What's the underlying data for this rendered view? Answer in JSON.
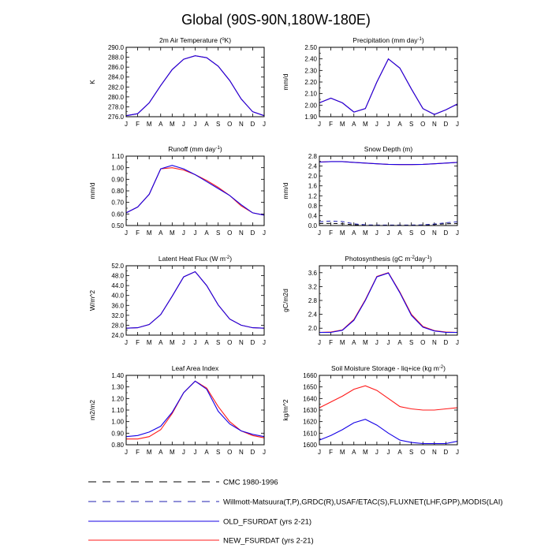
{
  "title": "Global (90S-90N,180W-180E)",
  "months": [
    "J",
    "F",
    "M",
    "A",
    "M",
    "J",
    "J",
    "A",
    "S",
    "O",
    "N",
    "D",
    "J"
  ],
  "colors": {
    "old": "#1400e6",
    "new": "#ff1a1a",
    "axis": "#000000",
    "obs": "#000000",
    "obs2": "#2020b0"
  },
  "chart_data": [
    {
      "type": "line",
      "title": "2m Air Temperature (°K)",
      "title_parts": [
        "2m Air Temperature (",
        "o",
        "K)"
      ],
      "ylabel": "K",
      "ylim": [
        276,
        290
      ],
      "yticks": [
        "276.0",
        "278.0",
        "280.0",
        "282.0",
        "284.0",
        "286.0",
        "288.0",
        "290.0"
      ],
      "series": [
        {
          "name": "NEW_FSURDAT (yrs 2-21)",
          "values": [
            276.2,
            276.6,
            278.8,
            282.3,
            285.5,
            287.6,
            288.3,
            287.9,
            286.2,
            283.3,
            279.6,
            277.0,
            276.2
          ]
        },
        {
          "name": "OLD_FSURDAT (yrs 2-21)",
          "values": [
            276.2,
            276.6,
            278.8,
            282.3,
            285.5,
            287.6,
            288.3,
            287.9,
            286.2,
            283.3,
            279.6,
            277.0,
            276.2
          ]
        }
      ]
    },
    {
      "type": "line",
      "title": "Precipitation (mm day-1)",
      "title_parts": [
        "Precipitation (mm day",
        "-1",
        ")"
      ],
      "ylabel": "mm/d",
      "ylim": [
        1.9,
        2.5
      ],
      "yticks": [
        "1.90",
        "2.00",
        "2.10",
        "2.20",
        "2.30",
        "2.40",
        "2.50"
      ],
      "series": [
        {
          "name": "NEW_FSURDAT (yrs 2-21)",
          "values": [
            2.02,
            2.06,
            2.02,
            1.94,
            1.97,
            2.2,
            2.4,
            2.32,
            2.14,
            1.97,
            1.92,
            1.96,
            2.01
          ]
        },
        {
          "name": "OLD_FSURDAT (yrs 2-21)",
          "values": [
            2.02,
            2.06,
            2.02,
            1.94,
            1.97,
            2.2,
            2.4,
            2.32,
            2.14,
            1.97,
            1.92,
            1.96,
            2.01
          ]
        }
      ]
    },
    {
      "type": "line",
      "title": "Runoff (mm day-1)",
      "title_parts": [
        "Runoff (mm day",
        "-1",
        ")"
      ],
      "ylabel": "mm/d",
      "ylim": [
        0.5,
        1.1
      ],
      "yticks": [
        "0.50",
        "0.60",
        "0.70",
        "0.80",
        "0.90",
        "1.00",
        "1.10"
      ],
      "series": [
        {
          "name": "NEW_FSURDAT (yrs 2-21)",
          "values": [
            0.61,
            0.66,
            0.77,
            0.99,
            1.0,
            0.98,
            0.94,
            0.89,
            0.83,
            0.76,
            0.67,
            0.61,
            0.59
          ]
        },
        {
          "name": "OLD_FSURDAT (yrs 2-21)",
          "values": [
            0.61,
            0.66,
            0.77,
            0.99,
            1.02,
            0.99,
            0.94,
            0.88,
            0.82,
            0.76,
            0.68,
            0.61,
            0.59
          ]
        }
      ]
    },
    {
      "type": "line",
      "title": "Snow Depth (m)",
      "title_parts": [
        "Snow Depth (m)",
        "",
        ""
      ],
      "ylabel": "mm/d",
      "ylim": [
        0,
        2.8
      ],
      "yticks": [
        "0.0",
        "0.4",
        "0.8",
        "1.2",
        "1.6",
        "2.0",
        "2.4",
        "2.8"
      ],
      "series": [
        {
          "name": "NEW_FSURDAT (yrs 2-21)",
          "values": [
            2.56,
            2.58,
            2.58,
            2.55,
            2.52,
            2.49,
            2.47,
            2.46,
            2.46,
            2.47,
            2.49,
            2.52,
            2.55
          ]
        },
        {
          "name": "OLD_FSURDAT (yrs 2-21)",
          "values": [
            2.56,
            2.58,
            2.58,
            2.55,
            2.52,
            2.49,
            2.47,
            2.46,
            2.46,
            2.47,
            2.49,
            2.52,
            2.55
          ]
        },
        {
          "name": "CMC 1980-1996",
          "values": [
            0.08,
            0.09,
            0.07,
            0.03,
            0.02,
            0.01,
            0.01,
            0.01,
            0.01,
            0.02,
            0.04,
            0.07,
            0.08
          ]
        },
        {
          "name": "Willmott-Matsuura",
          "values": [
            0.15,
            0.18,
            0.16,
            0.07,
            0.03,
            0.02,
            0.02,
            0.02,
            0.02,
            0.03,
            0.06,
            0.11,
            0.15
          ]
        }
      ]
    },
    {
      "type": "line",
      "title": "Latent Heat Flux (W m-2)",
      "title_parts": [
        "Latent Heat Flux (W m",
        "-2",
        ")"
      ],
      "ylabel": "W/m^2",
      "ylim": [
        24,
        52
      ],
      "yticks": [
        "24.0",
        "28.0",
        "32.0",
        "36.0",
        "40.0",
        "44.0",
        "48.0",
        "52.0"
      ],
      "series": [
        {
          "name": "NEW_FSURDAT (yrs 2-21)",
          "values": [
            26.8,
            27.0,
            28.3,
            32.3,
            39.7,
            47.5,
            49.6,
            44.0,
            36.2,
            30.5,
            28.0,
            27.0,
            26.8
          ]
        },
        {
          "name": "OLD_FSURDAT (yrs 2-21)",
          "values": [
            26.8,
            27.0,
            28.3,
            32.3,
            39.7,
            47.5,
            49.6,
            44.0,
            36.2,
            30.5,
            28.0,
            27.0,
            26.8
          ]
        }
      ]
    },
    {
      "type": "line",
      "title": "Photosynthesis (gC m-2day-1)",
      "title_parts": [
        "Photosynthesis (gC m",
        "-2",
        "day",
        "-1",
        ")"
      ],
      "ylabel": "gC/m2d",
      "ylim": [
        1.8,
        3.8
      ],
      "yticks": [
        "2.0",
        "2.4",
        "2.8",
        "3.2",
        "3.6"
      ],
      "ytick_values": [
        2.0,
        2.4,
        2.8,
        3.2,
        3.6
      ],
      "series": [
        {
          "name": "NEW_FSURDAT (yrs 2-21)",
          "values": [
            1.88,
            1.89,
            1.95,
            2.25,
            2.82,
            3.49,
            3.6,
            3.04,
            2.4,
            2.05,
            1.93,
            1.89,
            1.88
          ]
        },
        {
          "name": "OLD_FSURDAT (yrs 2-21)",
          "values": [
            1.88,
            1.88,
            1.94,
            2.23,
            2.8,
            3.48,
            3.59,
            3.02,
            2.37,
            2.03,
            1.92,
            1.88,
            1.88
          ]
        }
      ]
    },
    {
      "type": "line",
      "title": "Leaf Area Index",
      "title_parts": [
        "Leaf Area Index",
        "",
        ""
      ],
      "ylabel": "m2/m2",
      "ylim": [
        0.8,
        1.4
      ],
      "yticks": [
        "0.80",
        "0.90",
        "1.00",
        "1.10",
        "1.20",
        "1.30",
        "1.40"
      ],
      "series": [
        {
          "name": "NEW_FSURDAT (yrs 2-21)",
          "values": [
            0.85,
            0.85,
            0.87,
            0.93,
            1.07,
            1.25,
            1.35,
            1.29,
            1.13,
            1.0,
            0.92,
            0.88,
            0.86
          ]
        },
        {
          "name": "OLD_FSURDAT (yrs 2-21)",
          "values": [
            0.87,
            0.88,
            0.91,
            0.96,
            1.08,
            1.25,
            1.35,
            1.28,
            1.09,
            0.98,
            0.92,
            0.89,
            0.87
          ]
        }
      ]
    },
    {
      "type": "line",
      "title": "Soil Moisture Storage - liq+ice (kg m-2)",
      "title_parts": [
        "Soil Moisture Storage - liq+ice (kg m",
        "-2",
        ")"
      ],
      "ylabel": "kg/m^2",
      "ylim": [
        1600,
        1660
      ],
      "yticks": [
        "1600",
        "1610",
        "1620",
        "1630",
        "1640",
        "1650",
        "1660"
      ],
      "series": [
        {
          "name": "NEW_FSURDAT (yrs 2-21)",
          "values": [
            1632,
            1637,
            1642,
            1648,
            1651,
            1647,
            1640,
            1633,
            1631,
            1630,
            1630,
            1631,
            1632
          ]
        },
        {
          "name": "OLD_FSURDAT (yrs 2-21)",
          "values": [
            1604,
            1608,
            1613,
            1619,
            1622,
            1617,
            1610,
            1604,
            1602,
            1601,
            1601,
            1601,
            1603
          ]
        }
      ]
    }
  ],
  "legend": [
    {
      "label": "CMC 1980-1996",
      "style": "dash-black"
    },
    {
      "label": "Willmott-Matsuura(T,P),GRDC(R),USAF/ETAC(S),FLUXNET(LHF,GPP),MODIS(LAI)",
      "style": "dash-blue"
    },
    {
      "label": "OLD_FSURDAT (yrs 2-21)",
      "style": "solid-blue"
    },
    {
      "label": "NEW_FSURDAT (yrs 2-21)",
      "style": "solid-red"
    }
  ]
}
